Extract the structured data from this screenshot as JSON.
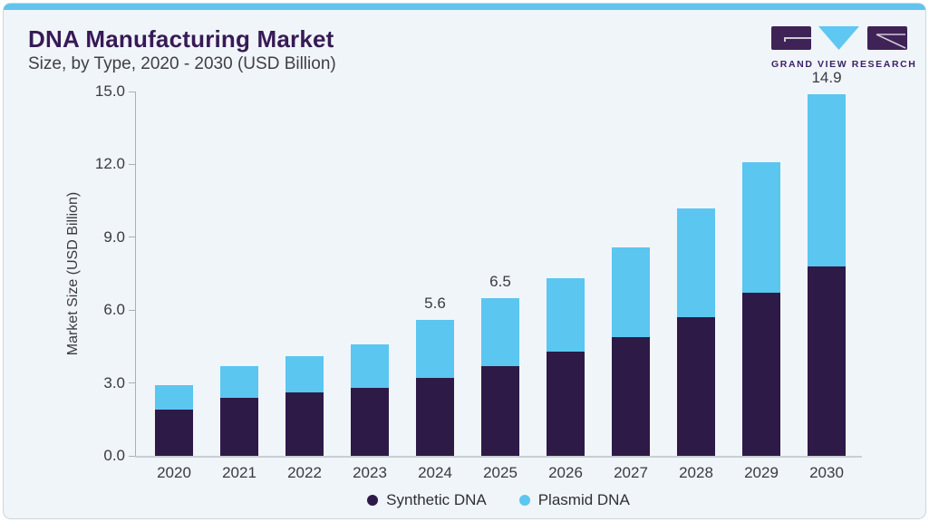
{
  "header": {
    "title": "DNA Manufacturing Market",
    "subtitle": "Size, by Type, 2020 - 2030 (USD Billion)"
  },
  "logo": {
    "text": "GRAND VIEW RESEARCH"
  },
  "chart_data": {
    "type": "bar",
    "stacked": true,
    "title": "DNA Manufacturing Market Size, by Type, 2020 - 2030 (USD Billion)",
    "categories": [
      "2020",
      "2021",
      "2022",
      "2023",
      "2024",
      "2025",
      "2026",
      "2027",
      "2028",
      "2029",
      "2030"
    ],
    "series": [
      {
        "name": "Synthetic DNA",
        "color": "#2e1a47",
        "values": [
          1.9,
          2.4,
          2.6,
          2.8,
          3.2,
          3.7,
          4.3,
          4.9,
          5.7,
          6.7,
          7.8
        ]
      },
      {
        "name": "Plasmid DNA",
        "color": "#5bc6f0",
        "values": [
          1.0,
          1.3,
          1.5,
          1.8,
          2.4,
          2.8,
          3.0,
          3.7,
          4.5,
          5.4,
          7.1
        ]
      }
    ],
    "totals": [
      2.9,
      3.7,
      4.1,
      4.6,
      5.6,
      6.5,
      7.3,
      8.6,
      10.2,
      12.1,
      14.9
    ],
    "bar_value_labels": [
      "",
      "",
      "",
      "",
      "5.6",
      "6.5",
      "",
      "",
      "",
      "",
      "14.9"
    ],
    "xlabel": "",
    "ylabel": "Market Size (USD Billion)",
    "y_ticks": [
      "0.0",
      "3.0",
      "6.0",
      "9.0",
      "12.0",
      "15.0"
    ],
    "ylim": [
      0,
      15
    ],
    "grid": false,
    "legend_position": "bottom"
  },
  "colors": {
    "card_bg": "#f0f5f9",
    "accent_strip": "#62c4ee",
    "title_text": "#371a56",
    "body_text": "#3a3a42",
    "axis_line": "#a9b0b8",
    "baseline": "#c9ced3",
    "logo_purple": "#3f2356",
    "logo_blue": "#5ec7f2"
  }
}
